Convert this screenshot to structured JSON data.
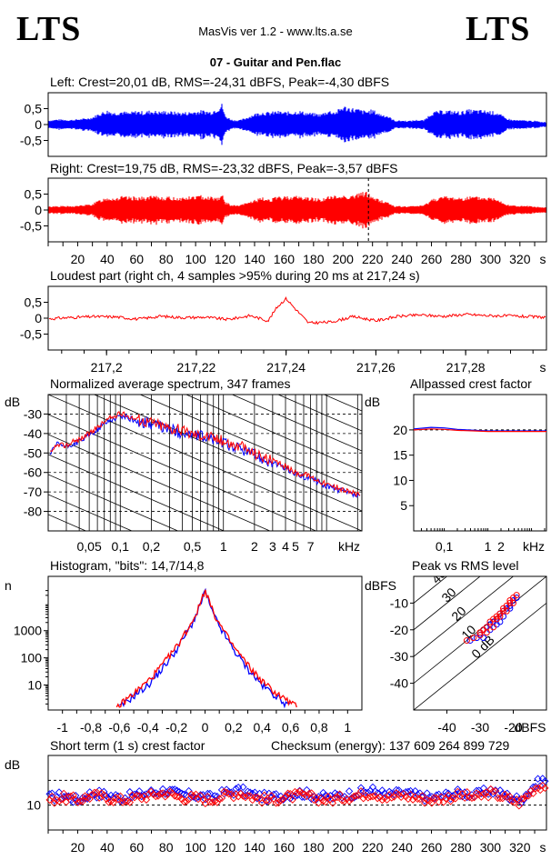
{
  "header": {
    "logo_left": "LTS",
    "logo_right": "LTS",
    "app_title": "MasVis ver 1.2 - www.lts.a.se",
    "file_name": "07 - Guitar and Pen.flac"
  },
  "colors": {
    "left": "#0000ff",
    "right": "#ff0000",
    "grid": "#000000"
  },
  "chart_data": [
    {
      "id": "left-waveform",
      "type": "area",
      "title": "Left: Crest=20,01 dB, RMS=-24,31 dBFS, Peak=-4,30 dBFS",
      "ylim": [
        -1,
        1
      ],
      "y_ticks": [
        "0,5",
        "0",
        "-0,5"
      ],
      "xlim": [
        0,
        338
      ],
      "envelope_x": [
        0,
        5,
        10,
        15,
        20,
        25,
        30,
        35,
        40,
        45,
        50,
        55,
        60,
        65,
        70,
        75,
        80,
        85,
        90,
        95,
        100,
        105,
        110,
        115,
        118,
        120,
        125,
        130,
        135,
        140,
        145,
        150,
        155,
        160,
        165,
        170,
        175,
        180,
        185,
        190,
        195,
        200,
        205,
        210,
        215,
        220,
        225,
        230,
        235,
        240,
        245,
        250,
        255,
        260,
        265,
        270,
        275,
        280,
        285,
        290,
        295,
        300,
        305,
        310,
        315,
        320,
        325,
        330,
        335
      ],
      "envelope_y": [
        0.12,
        0.15,
        0.15,
        0.14,
        0.16,
        0.18,
        0.22,
        0.34,
        0.42,
        0.36,
        0.4,
        0.35,
        0.41,
        0.38,
        0.42,
        0.39,
        0.4,
        0.38,
        0.36,
        0.37,
        0.4,
        0.42,
        0.39,
        0.5,
        0.62,
        0.26,
        0.14,
        0.13,
        0.22,
        0.32,
        0.38,
        0.36,
        0.4,
        0.37,
        0.38,
        0.41,
        0.36,
        0.33,
        0.31,
        0.42,
        0.38,
        0.55,
        0.5,
        0.46,
        0.4,
        0.44,
        0.32,
        0.27,
        0.12,
        0.12,
        0.11,
        0.14,
        0.13,
        0.36,
        0.4,
        0.42,
        0.4,
        0.38,
        0.44,
        0.43,
        0.42,
        0.4,
        0.36,
        0.2,
        0.14,
        0.13,
        0.12,
        0.11,
        0.08
      ]
    },
    {
      "id": "right-waveform",
      "type": "area",
      "title": "Right: Crest=19,75 dB, RMS=-23,32 dBFS, Peak=-3,57 dBFS",
      "ylim": [
        -1,
        1
      ],
      "y_ticks": [
        "0,5",
        "0",
        "-0,5"
      ],
      "xlim": [
        0,
        338
      ],
      "x_ticks": [
        20,
        40,
        60,
        80,
        100,
        120,
        140,
        160,
        180,
        200,
        220,
        240,
        260,
        280,
        300,
        320
      ],
      "x_unit": "s",
      "marker_x": 217.24,
      "envelope_x": [
        0,
        5,
        10,
        15,
        20,
        25,
        30,
        35,
        40,
        45,
        50,
        55,
        60,
        65,
        70,
        75,
        80,
        85,
        90,
        95,
        100,
        105,
        110,
        115,
        118,
        120,
        125,
        130,
        135,
        140,
        145,
        150,
        155,
        160,
        165,
        170,
        175,
        180,
        185,
        190,
        195,
        200,
        205,
        210,
        215,
        220,
        225,
        230,
        235,
        240,
        245,
        250,
        255,
        260,
        265,
        270,
        275,
        280,
        285,
        290,
        295,
        300,
        305,
        310,
        315,
        320,
        325,
        330,
        335
      ],
      "envelope_y": [
        0.1,
        0.12,
        0.12,
        0.11,
        0.13,
        0.15,
        0.18,
        0.3,
        0.38,
        0.36,
        0.4,
        0.38,
        0.4,
        0.37,
        0.41,
        0.4,
        0.39,
        0.38,
        0.37,
        0.39,
        0.42,
        0.43,
        0.4,
        0.38,
        0.46,
        0.24,
        0.14,
        0.14,
        0.22,
        0.3,
        0.36,
        0.33,
        0.38,
        0.4,
        0.42,
        0.41,
        0.38,
        0.36,
        0.33,
        0.4,
        0.42,
        0.44,
        0.43,
        0.47,
        0.56,
        0.4,
        0.3,
        0.24,
        0.12,
        0.11,
        0.11,
        0.13,
        0.14,
        0.32,
        0.38,
        0.4,
        0.38,
        0.37,
        0.4,
        0.39,
        0.38,
        0.37,
        0.35,
        0.18,
        0.14,
        0.12,
        0.12,
        0.1,
        0.08
      ]
    },
    {
      "id": "loudest-part",
      "type": "line",
      "title": "Loudest part (right ch, 4 samples >95% during 20 ms at 217,24 s)",
      "ylim": [
        -1,
        1
      ],
      "y_ticks": [
        "0,5",
        "0",
        "-0,5"
      ],
      "xlim": [
        217.187,
        217.298
      ],
      "x_ticks": [
        "217,2",
        "217,22",
        "217,24",
        "217,26",
        "217,28"
      ],
      "x_unit": "s",
      "x": [
        217.187,
        217.192,
        217.197,
        217.202,
        217.207,
        217.212,
        217.217,
        217.222,
        217.227,
        217.232,
        217.236,
        217.238,
        217.24,
        217.242,
        217.245,
        217.25,
        217.255,
        217.26,
        217.265,
        217.27,
        217.275,
        217.28,
        217.285,
        217.29,
        217.295,
        217.298
      ],
      "y": [
        -0.02,
        0.02,
        0.05,
        0.04,
        -0.03,
        0.06,
        0.02,
        0.03,
        -0.04,
        0.08,
        -0.08,
        0.35,
        0.62,
        0.3,
        -0.15,
        -0.12,
        0.05,
        -0.08,
        0.06,
        0.1,
        0.06,
        0.12,
        0.08,
        0.07,
        0.04,
        0.03
      ]
    },
    {
      "id": "avg-spectrum",
      "type": "line",
      "title": "Normalized average spectrum, 347 frames",
      "ylabel": "dB",
      "ylim": [
        -90,
        -20
      ],
      "y_ticks": [
        -30,
        -40,
        -50,
        -60,
        -70,
        -80
      ],
      "xlim": [
        0.02,
        22
      ],
      "x_scale": "log",
      "x_ticks": [
        "0,05",
        "0,1",
        "0,2",
        "0,5",
        "1",
        "2",
        "3",
        "4",
        "5",
        "7"
      ],
      "x_unit": "kHz",
      "series": [
        {
          "name": "left",
          "x": [
            0.02,
            0.025,
            0.03,
            0.04,
            0.05,
            0.06,
            0.07,
            0.08,
            0.1,
            0.12,
            0.15,
            0.2,
            0.3,
            0.5,
            0.7,
            1,
            1.5,
            2,
            3,
            4,
            5,
            7,
            10,
            15,
            22
          ],
          "y": [
            -52,
            -45,
            -47,
            -44,
            -41,
            -38,
            -35,
            -33,
            -31,
            -32,
            -34,
            -35,
            -38,
            -41,
            -42,
            -45,
            -48,
            -51,
            -55,
            -58,
            -61,
            -63,
            -67,
            -70,
            -73
          ]
        },
        {
          "name": "right",
          "x": [
            0.02,
            0.025,
            0.03,
            0.04,
            0.05,
            0.06,
            0.07,
            0.08,
            0.1,
            0.12,
            0.15,
            0.2,
            0.3,
            0.5,
            0.7,
            1,
            1.5,
            2,
            3,
            4,
            5,
            7,
            10,
            15,
            22
          ],
          "y": [
            -51,
            -46,
            -46,
            -43,
            -40,
            -37,
            -34,
            -32,
            -30,
            -31,
            -33,
            -34,
            -37,
            -40,
            -41,
            -44,
            -47,
            -50,
            -54,
            -57,
            -60,
            -62,
            -66,
            -69,
            -72
          ]
        }
      ]
    },
    {
      "id": "allpassed-crest",
      "type": "line",
      "title": "Allpassed crest factor",
      "ylabel": "dB",
      "ylim": [
        0,
        27
      ],
      "y_ticks": [
        20,
        15,
        10,
        5
      ],
      "xlim": [
        0.02,
        22
      ],
      "x_scale": "log",
      "x_ticks": [
        "0,1",
        "1",
        "2"
      ],
      "x_unit": "kHz",
      "series": [
        {
          "name": "left",
          "x": [
            0.02,
            0.05,
            0.1,
            0.2,
            0.5,
            1,
            2,
            5,
            10,
            22
          ],
          "y": [
            20.2,
            20.5,
            20.4,
            20.1,
            19.9,
            19.8,
            19.8,
            19.8,
            19.8,
            19.8
          ]
        },
        {
          "name": "right",
          "x": [
            0.02,
            0.05,
            0.1,
            0.2,
            0.5,
            1,
            2,
            5,
            10,
            22
          ],
          "y": [
            20.0,
            20.2,
            20.1,
            19.9,
            19.8,
            19.7,
            19.7,
            19.7,
            19.7,
            19.7
          ]
        }
      ],
      "reference_y": 20
    },
    {
      "id": "histogram",
      "type": "line",
      "title": "Histogram, \"bits\": 14,7/14,8",
      "ylabel": "n",
      "y_scale": "log",
      "ylim": [
        1.2,
        100000
      ],
      "y_ticks": [
        "1000",
        "100",
        "10"
      ],
      "xlim": [
        -1.1,
        1.1
      ],
      "x_ticks": [
        "-1",
        "-0,8",
        "-0,6",
        "-0,4",
        "-0,2",
        "0",
        "0,2",
        "0,4",
        "0,6",
        "0,8",
        "1"
      ],
      "series": [
        {
          "name": "left",
          "x": [
            -0.6,
            -0.5,
            -0.4,
            -0.3,
            -0.2,
            -0.1,
            -0.05,
            0,
            0.05,
            0.1,
            0.2,
            0.3,
            0.4,
            0.5,
            0.6
          ],
          "y": [
            1.5,
            4,
            10,
            40,
            200,
            1500,
            5000,
            30000,
            5000,
            1500,
            200,
            40,
            10,
            4,
            1.5
          ]
        },
        {
          "name": "right",
          "x": [
            -0.62,
            -0.5,
            -0.4,
            -0.3,
            -0.2,
            -0.1,
            -0.05,
            0,
            0.05,
            0.1,
            0.2,
            0.3,
            0.4,
            0.5,
            0.65
          ],
          "y": [
            1.5,
            5,
            14,
            55,
            260,
            1800,
            6000,
            35000,
            6000,
            1800,
            260,
            55,
            14,
            5,
            1.5
          ]
        }
      ]
    },
    {
      "id": "peak-vs-rms",
      "type": "scatter",
      "title": "Peak vs RMS level",
      "ylabel": "dBFS",
      "xlabel": "dBFS",
      "xlim": [
        -50,
        -10
      ],
      "ylim": [
        -50,
        0
      ],
      "x_ticks": [
        -40,
        -30,
        -20
      ],
      "y_ticks": [
        -10,
        -20,
        -30,
        -40
      ],
      "diagonal_labels": [
        "40",
        "30",
        "20",
        "10",
        "0 dB"
      ],
      "series": [
        {
          "name": "left",
          "x": [
            -33,
            -31,
            -30,
            -29,
            -28,
            -27,
            -26,
            -25,
            -24,
            -23,
            -22,
            -21,
            -20,
            -19,
            -25,
            -27,
            -23,
            -21,
            -29,
            -24
          ],
          "y": [
            -24,
            -23,
            -22,
            -20,
            -19,
            -18,
            -17,
            -16,
            -14,
            -13,
            -12,
            -11,
            -9,
            -8,
            -18,
            -20,
            -15,
            -12,
            -23,
            -17
          ]
        },
        {
          "name": "right",
          "x": [
            -34,
            -32,
            -30,
            -29,
            -28,
            -27,
            -26,
            -25,
            -24,
            -23,
            -22,
            -21,
            -20,
            -19,
            -26,
            -28,
            -22,
            -20,
            -30,
            -25,
            -24,
            -23,
            -21
          ],
          "y": [
            -24,
            -23,
            -21,
            -20,
            -19,
            -17,
            -16,
            -15,
            -14,
            -12,
            -11,
            -10,
            -8,
            -7,
            -19,
            -21,
            -13,
            -10,
            -22,
            -16,
            -15,
            -13,
            -9
          ]
        }
      ]
    },
    {
      "id": "short-term-crest",
      "type": "scatter",
      "title": "Short term (1 s) crest factor",
      "ylabel": "dB",
      "ylim": [
        5,
        20
      ],
      "y_ticks": [
        10
      ],
      "xlim": [
        0,
        338
      ],
      "x_ticks": [
        20,
        40,
        60,
        80,
        100,
        120,
        140,
        160,
        180,
        200,
        220,
        240,
        260,
        280,
        300,
        320
      ],
      "x_unit": "s",
      "guides_y": [
        15,
        10
      ],
      "series": [
        {
          "name": "left",
          "x": [
            0,
            10,
            20,
            30,
            40,
            50,
            60,
            70,
            80,
            90,
            100,
            110,
            120,
            130,
            140,
            150,
            160,
            170,
            180,
            190,
            200,
            210,
            220,
            230,
            240,
            250,
            260,
            270,
            280,
            290,
            300,
            310,
            320,
            330,
            335
          ],
          "y": [
            11.5,
            12,
            11,
            12.5,
            12,
            11.5,
            12,
            12.5,
            13,
            12,
            12,
            11.5,
            12.5,
            13,
            12,
            11.5,
            12,
            12.5,
            12,
            11.5,
            12,
            12.5,
            13,
            12,
            12.5,
            12,
            11.5,
            12,
            12.5,
            12,
            13,
            12,
            11,
            14,
            15
          ]
        },
        {
          "name": "right",
          "x": [
            0,
            10,
            20,
            30,
            40,
            50,
            60,
            70,
            80,
            90,
            100,
            110,
            120,
            130,
            140,
            150,
            160,
            170,
            180,
            190,
            200,
            210,
            220,
            230,
            240,
            250,
            260,
            270,
            280,
            290,
            300,
            310,
            320,
            330,
            335
          ],
          "y": [
            11,
            11.5,
            11,
            12,
            11.5,
            11,
            11.5,
            12,
            12.5,
            11.5,
            11.5,
            11,
            12,
            12.5,
            11.5,
            11,
            11.5,
            12,
            11.5,
            11,
            11.5,
            12,
            12.5,
            11.5,
            12,
            11.5,
            11,
            11.5,
            12,
            11.5,
            12.5,
            11.5,
            10.5,
            13.5,
            14
          ]
        }
      ]
    }
  ],
  "checksum": "Checksum (energy):   137 609 264 899 729"
}
